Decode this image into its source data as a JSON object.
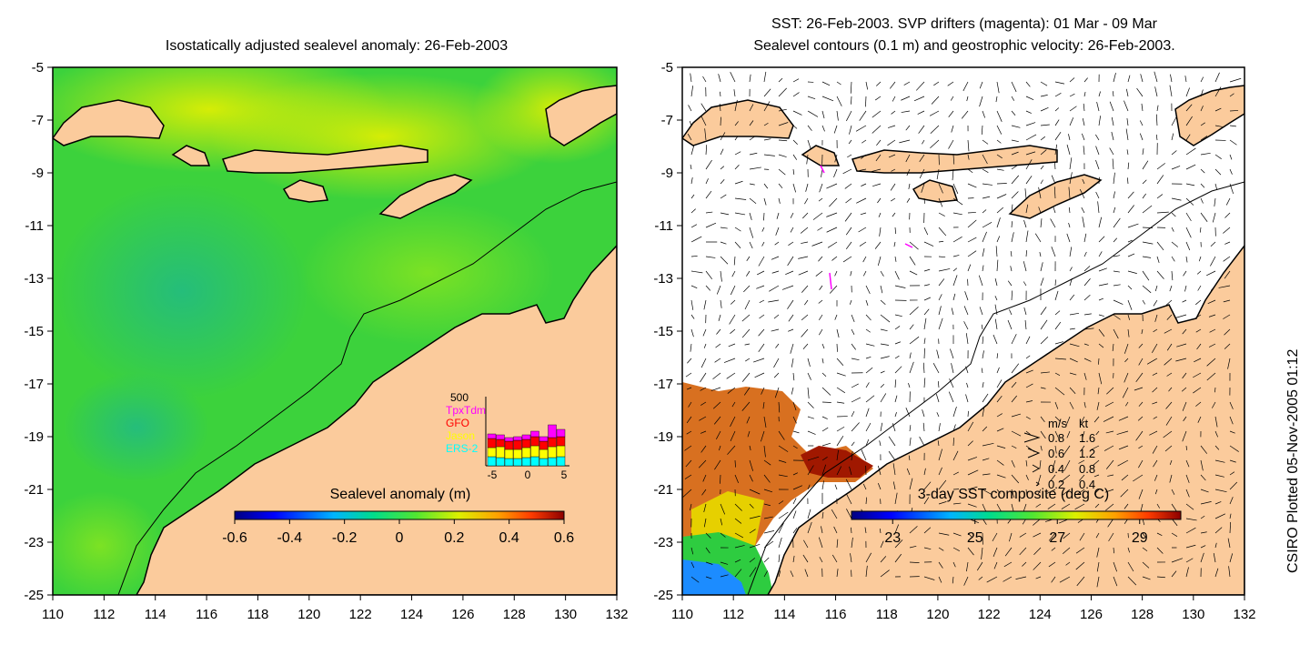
{
  "left_map": {
    "title": "Isostatically adjusted sealevel anomaly: 26-Feb-2003",
    "x_ticks": [
      "110",
      "112",
      "114",
      "116",
      "118",
      "120",
      "122",
      "124",
      "126",
      "128",
      "130",
      "132"
    ],
    "y_ticks": [
      "-5",
      "-7",
      "-9",
      "-11",
      "-13",
      "-15",
      "-17",
      "-19",
      "-21",
      "-23",
      "-25"
    ],
    "colorbar": {
      "title": "Sealevel anomaly (m)",
      "labels": [
        "-0.6",
        "-0.4",
        "-0.2",
        "0",
        "0.2",
        "0.4",
        "0.6"
      ],
      "range": [
        -0.6,
        0.6
      ]
    },
    "histogram": {
      "ymax_label": "500",
      "legend": [
        {
          "label": "TpxTdm",
          "color": "#ff00ff"
        },
        {
          "label": "GFO",
          "color": "#ff0000"
        },
        {
          "label": "Jason",
          "color": "#ffff00"
        },
        {
          "label": "ERS-2",
          "color": "#00ffff"
        }
      ],
      "x_labels": [
        "-5",
        "0",
        "5"
      ]
    }
  },
  "right_map": {
    "title_line1": "SST: 26-Feb-2003. SVP drifters (magenta): 01 Mar - 09 Mar",
    "title_line2": "Sealevel contours (0.1 m) and geostrophic velocity: 26-Feb-2003.",
    "x_ticks": [
      "110",
      "112",
      "114",
      "116",
      "118",
      "120",
      "122",
      "124",
      "126",
      "128",
      "130",
      "132"
    ],
    "y_ticks": [
      "-5",
      "-7",
      "-9",
      "-11",
      "-13",
      "-15",
      "-17",
      "-19",
      "-21",
      "-23",
      "-25"
    ],
    "colorbar": {
      "title": "3-day SST composite (deg C)",
      "labels": [
        "23",
        "25",
        "27",
        "29"
      ],
      "range": [
        22,
        30
      ]
    },
    "velocity_legend": {
      "header_ms": "m/s",
      "header_kt": "kt",
      "rows": [
        {
          "ms": "0.8",
          "kt": "1.6"
        },
        {
          "ms": "0.6",
          "kt": "1.2"
        },
        {
          "ms": "0.4",
          "kt": "0.8"
        },
        {
          "ms": "0.2",
          "kt": "0.4"
        }
      ]
    }
  },
  "credit": "CSIRO Plotted 05-Nov-2005 01:12",
  "colors": {
    "land": "#fbcb9c",
    "sea_green": "#33cc33",
    "coast": "#000000"
  }
}
